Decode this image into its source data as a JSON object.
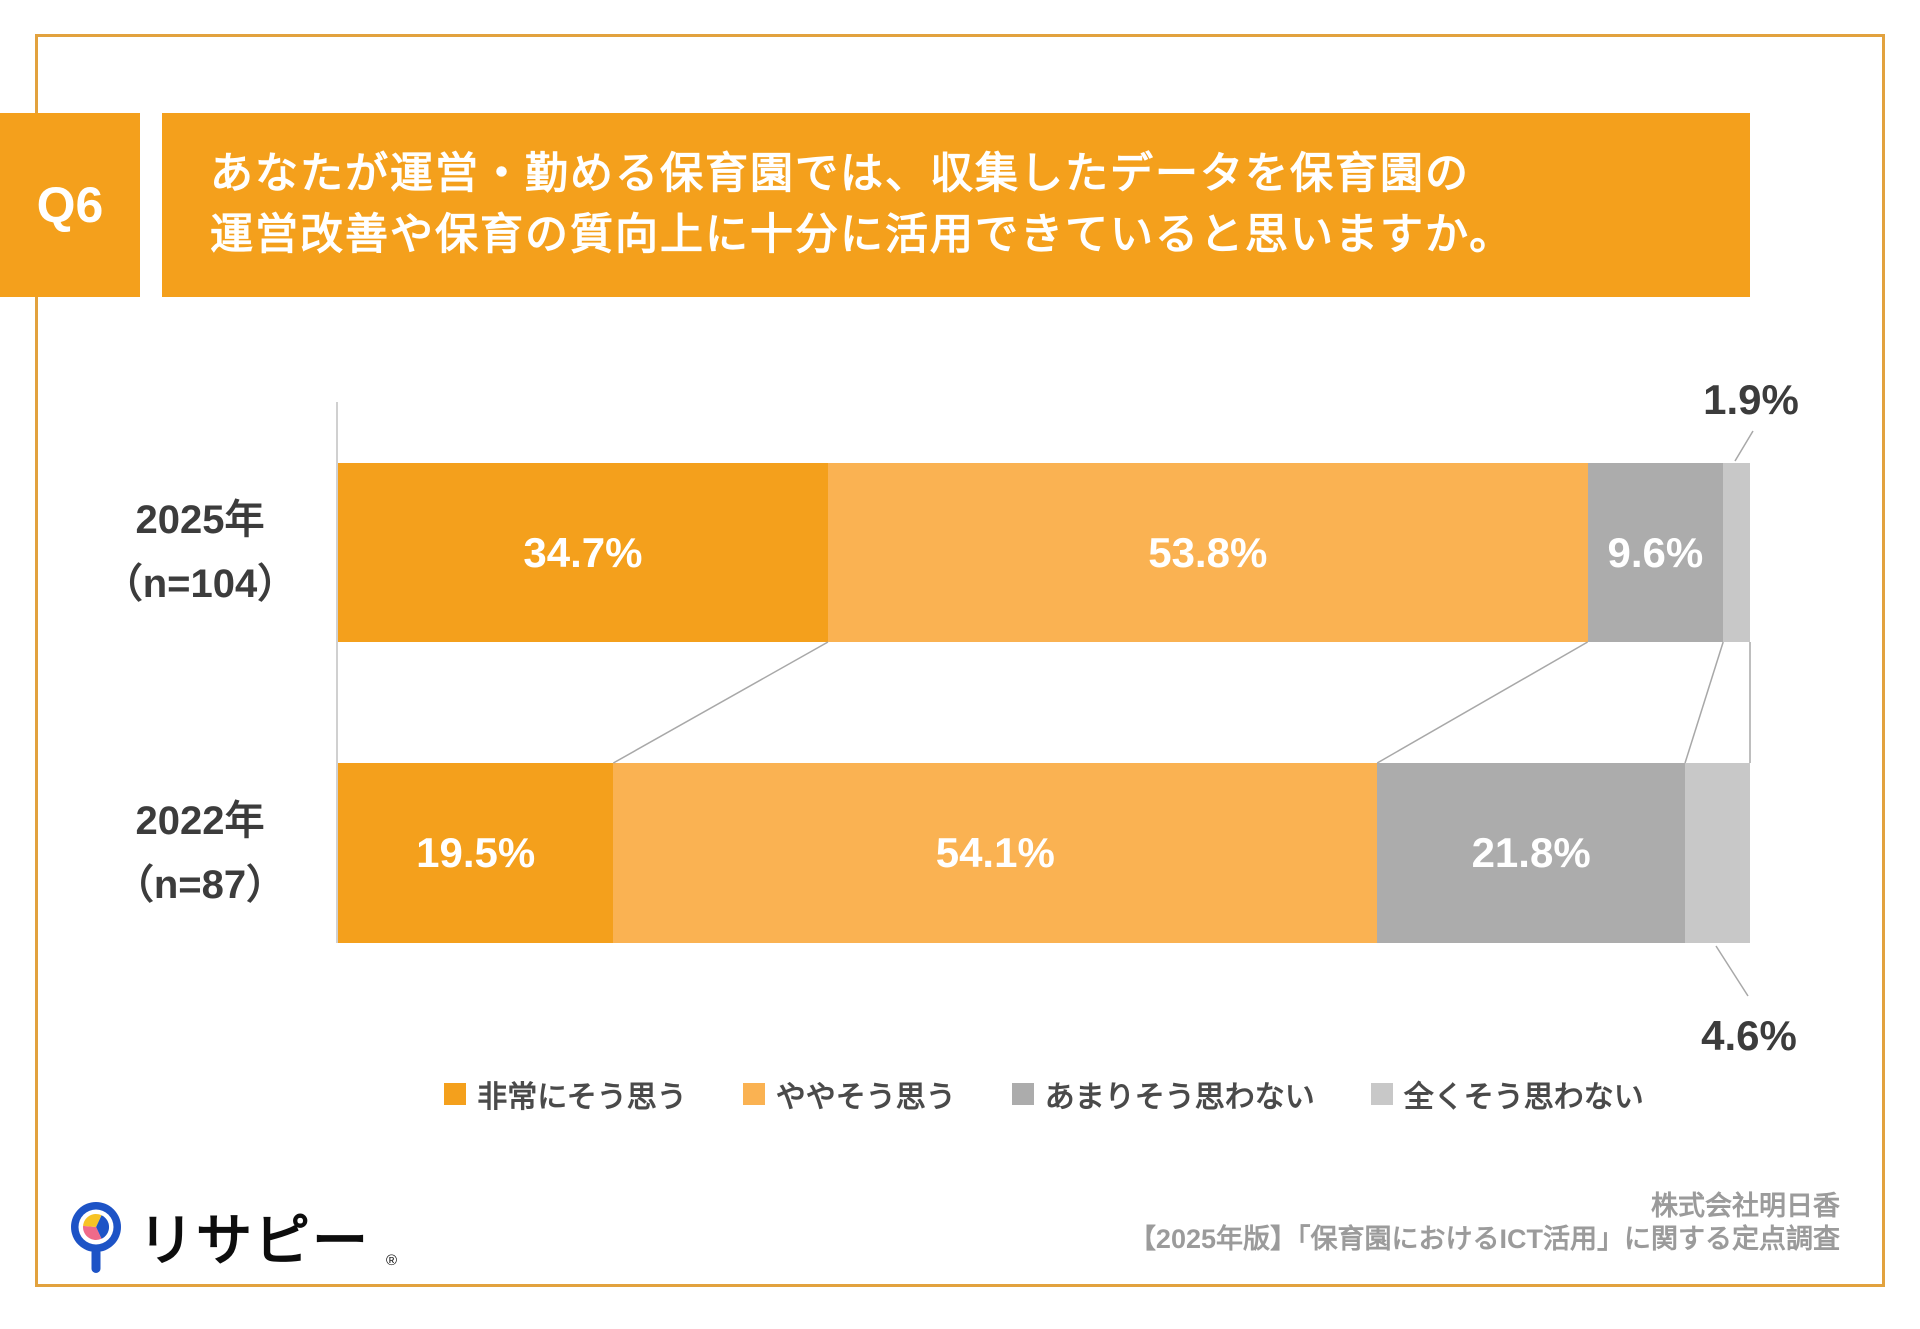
{
  "q6": {
    "label": "Q6"
  },
  "title": {
    "line1": "あなたが運営・勤める保育園では、収集したデータを保育園の",
    "line2": "運営改善や保育の質向上に十分に活用できていると思いますか。"
  },
  "chart_data": {
    "type": "bar",
    "stacked": true,
    "orientation": "horizontal",
    "unit": "%",
    "xlim": [
      0,
      100
    ],
    "grid": false,
    "legend_position": "bottom",
    "categories": [
      "2025年",
      "2022年"
    ],
    "category_sublabels": [
      "（n=104）",
      "（n=87）"
    ],
    "series": [
      {
        "name": "非常にそう思う",
        "color": "#F4A01C",
        "values": [
          34.7,
          19.5
        ]
      },
      {
        "name": "ややそう思う",
        "color": "#FAB252",
        "values": [
          53.8,
          54.1
        ]
      },
      {
        "name": "あまりそう思わない",
        "color": "#ACACAC",
        "values": [
          9.6,
          21.8
        ]
      },
      {
        "name": "全くそう思わない",
        "color": "#C8C8C8",
        "values": [
          1.9,
          4.6
        ]
      }
    ],
    "outside_value_labels": [
      {
        "row": 0,
        "series_index": 3,
        "text": "1.9%",
        "position": "above-right"
      },
      {
        "row": 1,
        "series_index": 3,
        "text": "4.6%",
        "position": "below-right"
      }
    ],
    "value_label_format": "one-decimal-percent"
  },
  "footer": {
    "logo_text": "リサピー",
    "registered_mark": "®",
    "source_line1": "株式会社明日香",
    "source_line2": "【2025年版】「保育園におけるICT活用」に関する定点調査"
  },
  "colors": {
    "accent_orange": "#F4A01C",
    "light_orange": "#FAB252",
    "gray": "#ACACAC",
    "light_gray": "#C8C8C8",
    "frame_orange": "#E2A23E",
    "connector_gray": "#A8A8A8",
    "text_dark": "#3C3C3C",
    "legend_text": "#4A4A4A",
    "footer_text": "#9B9B9B",
    "logo_blue": "#1D53C6",
    "logo_yellow": "#F7C325",
    "logo_pink": "#EF6A8A"
  }
}
